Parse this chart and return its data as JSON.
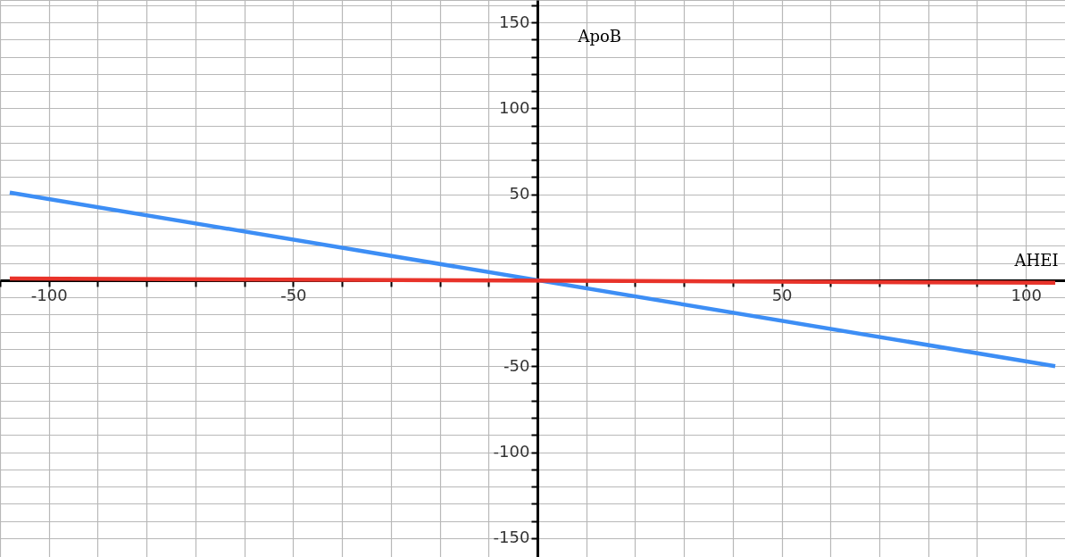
{
  "chart_data": {
    "type": "line",
    "xlabel": "AHEI",
    "ylabel": "ApoB",
    "series": [
      {
        "color": "#3d8ef5",
        "values": [
          51,
          -50
        ]
      },
      {
        "color": "#e8332a",
        "values": [
          1,
          -1.5
        ]
      }
    ],
    "x": [
      -108,
      106
    ],
    "xlim": [
      -110,
      108
    ],
    "ylim": [
      -161,
      163
    ],
    "xticks": [
      {
        "value": -110,
        "label": null
      },
      -100,
      {
        "value": -90,
        "label": null
      },
      {
        "value": -80,
        "label": null
      },
      {
        "value": -70,
        "label": null
      },
      {
        "value": -60,
        "label": null
      },
      -50,
      {
        "value": -40,
        "label": null
      },
      {
        "value": -30,
        "label": null
      },
      {
        "value": -20,
        "label": null
      },
      {
        "value": -10,
        "label": null
      },
      {
        "value": 0,
        "label": null
      },
      {
        "value": 10,
        "label": null
      },
      {
        "value": 20,
        "label": null
      },
      {
        "value": 30,
        "label": null
      },
      {
        "value": 40,
        "label": null
      },
      50,
      {
        "value": 60,
        "label": null
      },
      {
        "value": 70,
        "label": null
      },
      {
        "value": 80,
        "label": null
      },
      {
        "value": 90,
        "label": null
      },
      100
    ],
    "yticks": [
      -150,
      {
        "value": -140,
        "label": null
      },
      {
        "value": -130,
        "label": null
      },
      {
        "value": -120,
        "label": null
      },
      {
        "value": -110,
        "label": null
      },
      -100,
      {
        "value": -90,
        "label": null
      },
      {
        "value": -80,
        "label": null
      },
      {
        "value": -70,
        "label": null
      },
      {
        "value": -60,
        "label": null
      },
      -50,
      {
        "value": -40,
        "label": null
      },
      {
        "value": -30,
        "label": null
      },
      {
        "value": -20,
        "label": null
      },
      {
        "value": -10,
        "label": null
      },
      {
        "value": 0,
        "label": null
      },
      {
        "value": 10,
        "label": null
      },
      {
        "value": 20,
        "label": null
      },
      {
        "value": 30,
        "label": null
      },
      {
        "value": 40,
        "label": null
      },
      50,
      {
        "value": 60,
        "label": null
      },
      {
        "value": 70,
        "label": null
      },
      {
        "value": 80,
        "label": null
      },
      {
        "value": 90,
        "label": null
      },
      100,
      {
        "value": 110,
        "label": null
      },
      {
        "value": 120,
        "label": null
      },
      {
        "value": 130,
        "label": null
      },
      {
        "value": 140,
        "label": null
      },
      150,
      {
        "value": 160,
        "label": null
      }
    ],
    "grid": true,
    "line_style": "solid"
  }
}
